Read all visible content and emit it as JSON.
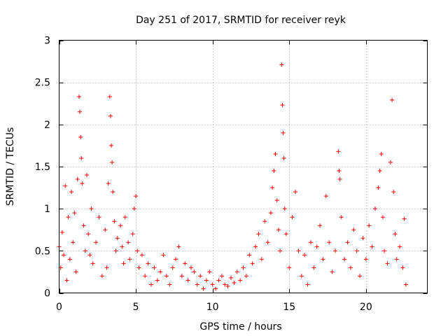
{
  "chart_data": {
    "type": "scatter",
    "title": "Day 251 of 2017, SRMTID for receiver reyk",
    "xlabel": "GPS time / hours",
    "ylabel": "SRMTID / TECUs",
    "xlim": [
      0,
      24
    ],
    "ylim": [
      0,
      3
    ],
    "xticks": [
      0,
      5,
      10,
      15,
      20
    ],
    "yticks": [
      0,
      0.5,
      1,
      1.5,
      2,
      2.5,
      3
    ],
    "xtick_labels": [
      "0",
      "5",
      "10",
      "15",
      "20"
    ],
    "ytick_labels": [
      "0",
      "0.5",
      "1",
      "1.5",
      "2",
      "2.5",
      "3"
    ],
    "grid": true,
    "marker": "plus",
    "color": "#ff0000",
    "series": [
      {
        "name": "SRMTID",
        "points": [
          [
            0.0,
            0.55
          ],
          [
            0.1,
            0.3
          ],
          [
            0.2,
            0.72
          ],
          [
            0.3,
            0.45
          ],
          [
            0.4,
            1.27
          ],
          [
            0.5,
            0.15
          ],
          [
            0.6,
            0.9
          ],
          [
            0.7,
            0.4
          ],
          [
            0.8,
            1.2
          ],
          [
            0.9,
            0.6
          ],
          [
            1.0,
            0.95
          ],
          [
            1.1,
            0.25
          ],
          [
            1.2,
            1.35
          ],
          [
            1.3,
            2.33
          ],
          [
            1.35,
            2.15
          ],
          [
            1.4,
            1.85
          ],
          [
            1.45,
            1.6
          ],
          [
            1.5,
            1.3
          ],
          [
            1.6,
            0.8
          ],
          [
            1.7,
            0.5
          ],
          [
            1.8,
            1.4
          ],
          [
            1.9,
            0.7
          ],
          [
            2.0,
            0.45
          ],
          [
            2.1,
            1.0
          ],
          [
            2.2,
            0.35
          ],
          [
            2.4,
            0.6
          ],
          [
            2.6,
            0.9
          ],
          [
            2.8,
            0.2
          ],
          [
            3.0,
            0.75
          ],
          [
            3.1,
            0.3
          ],
          [
            3.2,
            1.3
          ],
          [
            3.3,
            2.33
          ],
          [
            3.35,
            2.1
          ],
          [
            3.4,
            1.75
          ],
          [
            3.45,
            1.55
          ],
          [
            3.5,
            1.2
          ],
          [
            3.6,
            0.85
          ],
          [
            3.7,
            0.5
          ],
          [
            3.8,
            0.65
          ],
          [
            4.0,
            0.8
          ],
          [
            4.1,
            0.55
          ],
          [
            4.2,
            0.35
          ],
          [
            4.3,
            0.9
          ],
          [
            4.5,
            0.6
          ],
          [
            4.6,
            0.4
          ],
          [
            4.8,
            0.7
          ],
          [
            4.9,
            1.0
          ],
          [
            5.0,
            1.15
          ],
          [
            5.1,
            0.5
          ],
          [
            5.2,
            0.3
          ],
          [
            5.4,
            0.45
          ],
          [
            5.6,
            0.2
          ],
          [
            5.8,
            0.35
          ],
          [
            6.0,
            0.1
          ],
          [
            6.2,
            0.3
          ],
          [
            6.4,
            0.15
          ],
          [
            6.6,
            0.25
          ],
          [
            6.8,
            0.45
          ],
          [
            7.0,
            0.2
          ],
          [
            7.2,
            0.1
          ],
          [
            7.4,
            0.3
          ],
          [
            7.6,
            0.4
          ],
          [
            7.8,
            0.55
          ],
          [
            8.0,
            0.2
          ],
          [
            8.2,
            0.35
          ],
          [
            8.4,
            0.15
          ],
          [
            8.6,
            0.3
          ],
          [
            8.8,
            0.25
          ],
          [
            9.0,
            0.1
          ],
          [
            9.2,
            0.2
          ],
          [
            9.4,
            0.05
          ],
          [
            9.6,
            0.15
          ],
          [
            9.8,
            0.25
          ],
          [
            10.0,
            0.1
          ],
          [
            10.2,
            0.05
          ],
          [
            10.4,
            0.15
          ],
          [
            10.6,
            0.2
          ],
          [
            10.8,
            0.1
          ],
          [
            11.0,
            0.08
          ],
          [
            11.2,
            0.18
          ],
          [
            11.4,
            0.12
          ],
          [
            11.6,
            0.25
          ],
          [
            11.8,
            0.15
          ],
          [
            12.0,
            0.3
          ],
          [
            12.2,
            0.2
          ],
          [
            12.4,
            0.45
          ],
          [
            12.6,
            0.35
          ],
          [
            12.8,
            0.55
          ],
          [
            13.0,
            0.7
          ],
          [
            13.2,
            0.4
          ],
          [
            13.4,
            0.85
          ],
          [
            13.6,
            0.6
          ],
          [
            13.8,
            0.95
          ],
          [
            13.9,
            1.25
          ],
          [
            14.0,
            1.45
          ],
          [
            14.1,
            1.65
          ],
          [
            14.2,
            1.1
          ],
          [
            14.3,
            0.75
          ],
          [
            14.4,
            0.5
          ],
          [
            14.5,
            2.71
          ],
          [
            14.55,
            2.23
          ],
          [
            14.6,
            1.9
          ],
          [
            14.65,
            1.6
          ],
          [
            14.7,
            1.0
          ],
          [
            14.8,
            0.7
          ],
          [
            15.0,
            0.3
          ],
          [
            15.2,
            0.9
          ],
          [
            15.4,
            1.2
          ],
          [
            15.6,
            0.5
          ],
          [
            15.8,
            0.2
          ],
          [
            16.0,
            0.45
          ],
          [
            16.2,
            0.1
          ],
          [
            16.4,
            0.6
          ],
          [
            16.6,
            0.3
          ],
          [
            16.8,
            0.55
          ],
          [
            17.0,
            0.8
          ],
          [
            17.2,
            0.4
          ],
          [
            17.4,
            1.15
          ],
          [
            17.6,
            0.6
          ],
          [
            17.8,
            0.25
          ],
          [
            18.0,
            0.5
          ],
          [
            18.2,
            1.68
          ],
          [
            18.25,
            1.45
          ],
          [
            18.3,
            1.35
          ],
          [
            18.4,
            0.9
          ],
          [
            18.6,
            0.4
          ],
          [
            18.8,
            0.6
          ],
          [
            19.0,
            0.3
          ],
          [
            19.2,
            0.75
          ],
          [
            19.4,
            0.5
          ],
          [
            19.6,
            0.2
          ],
          [
            19.8,
            0.65
          ],
          [
            20.0,
            0.4
          ],
          [
            20.2,
            0.8
          ],
          [
            20.4,
            0.55
          ],
          [
            20.6,
            1.0
          ],
          [
            20.8,
            1.25
          ],
          [
            20.9,
            1.45
          ],
          [
            21.0,
            1.65
          ],
          [
            21.1,
            0.9
          ],
          [
            21.2,
            0.5
          ],
          [
            21.4,
            0.35
          ],
          [
            21.6,
            1.55
          ],
          [
            21.7,
            2.29
          ],
          [
            21.8,
            1.2
          ],
          [
            21.9,
            0.7
          ],
          [
            22.0,
            0.4
          ],
          [
            22.2,
            0.55
          ],
          [
            22.4,
            0.3
          ],
          [
            22.5,
            0.88
          ],
          [
            22.6,
            0.1
          ]
        ]
      }
    ]
  }
}
